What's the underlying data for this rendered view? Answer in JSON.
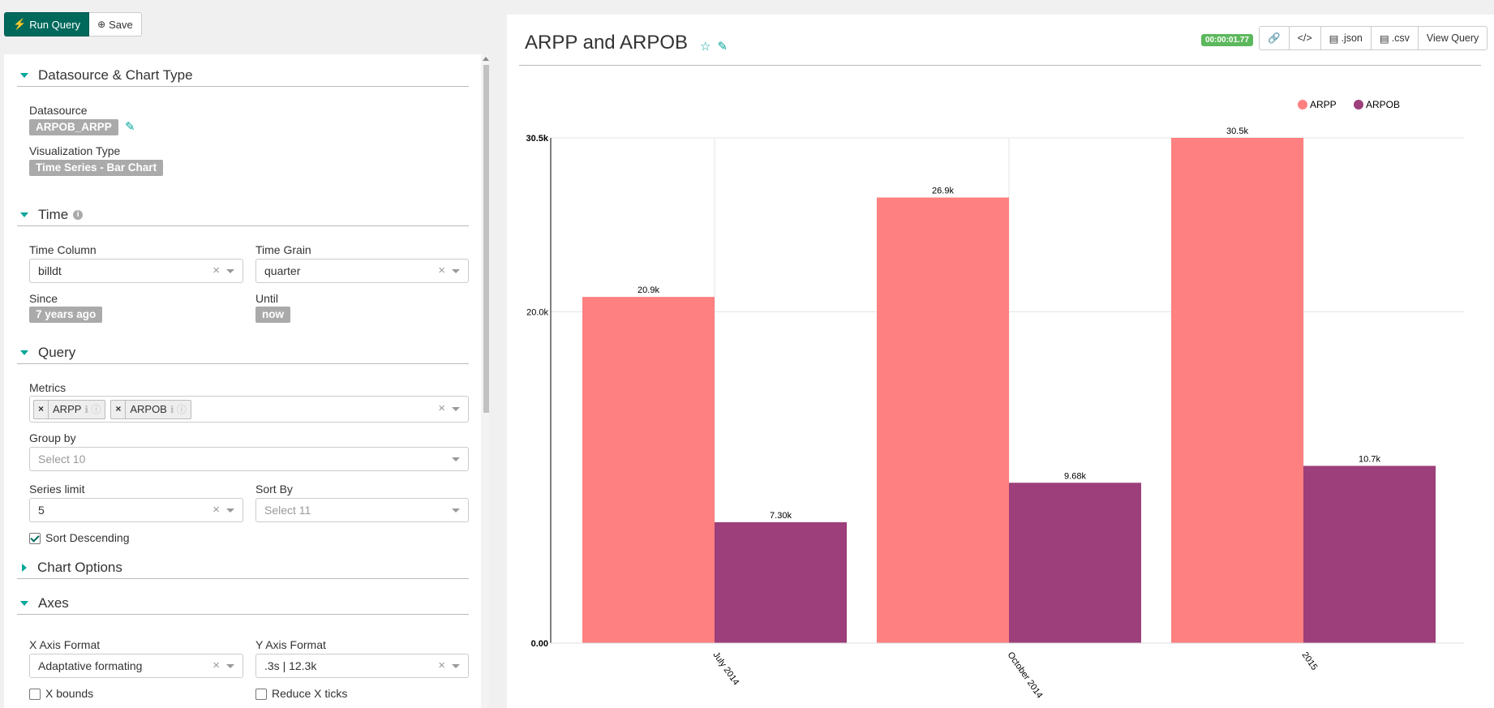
{
  "toolbar": {
    "run_label": "Run Query",
    "save_label": "Save"
  },
  "sections": {
    "datasource_chart_type": {
      "title": "Datasource & Chart Type",
      "datasource_label": "Datasource",
      "datasource_value": "ARPOB_ARPP",
      "viz_label": "Visualization Type",
      "viz_value": "Time Series - Bar Chart"
    },
    "time": {
      "title": "Time",
      "time_column_label": "Time Column",
      "time_column_value": "billdt",
      "time_grain_label": "Time Grain",
      "time_grain_value": "quarter",
      "since_label": "Since",
      "since_value": "7 years ago",
      "until_label": "Until",
      "until_value": "now"
    },
    "query": {
      "title": "Query",
      "metrics_label": "Metrics",
      "metrics": [
        "ARPP",
        "ARPOB"
      ],
      "group_by_label": "Group by",
      "group_by_placeholder": "Select 10",
      "series_limit_label": "Series limit",
      "series_limit_value": "5",
      "sort_by_label": "Sort By",
      "sort_by_placeholder": "Select 11",
      "sort_desc_label": "Sort Descending",
      "sort_desc_checked": true
    },
    "chart_options": {
      "title": "Chart Options"
    },
    "axes": {
      "title": "Axes",
      "x_format_label": "X Axis Format",
      "x_format_value": "Adaptative formating",
      "y_format_label": "Y Axis Format",
      "y_format_value": ".3s | 12.3k",
      "x_bounds_label": "X bounds",
      "reduce_x_ticks_label": "Reduce X ticks"
    }
  },
  "chart_header": {
    "title": "ARPP and ARPOB",
    "duration": "00:00:01.77",
    "actions": [
      ".json",
      ".csv",
      "View Query"
    ]
  },
  "colors": {
    "arpp": "#ff8080",
    "arpob": "#9c3f7a",
    "accent": "#00a699",
    "primary": "#00695c"
  },
  "chart_data": {
    "type": "bar",
    "categories": [
      "July 2014",
      "October 2014",
      "2015"
    ],
    "series": [
      {
        "name": "ARPP",
        "values": [
          20900,
          26900,
          30500
        ],
        "labels": [
          "20.9k",
          "26.9k",
          "30.5k"
        ]
      },
      {
        "name": "ARPOB",
        "values": [
          7300,
          9680,
          10700
        ],
        "labels": [
          "7.30k",
          "9.68k",
          "10.7k"
        ]
      }
    ],
    "ylim": [
      0,
      30500
    ],
    "yticks": [
      0,
      20000,
      30500
    ],
    "ytick_labels": [
      "0.00",
      "20.0k",
      "30.5k"
    ],
    "legend_position": "top-right",
    "grid": true
  }
}
